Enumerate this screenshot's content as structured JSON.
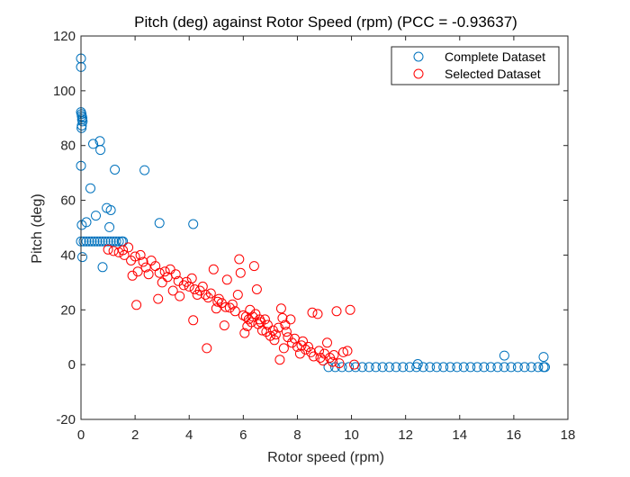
{
  "chart_data": {
    "type": "scatter",
    "title": "Pitch (deg) against Rotor Speed (rpm) (PCC = -0.93637)",
    "xlabel": "Rotor speed (rpm)",
    "ylabel": "Pitch (deg)",
    "xlim": [
      0,
      18
    ],
    "ylim": [
      -20,
      120
    ],
    "xticks": [
      "0",
      "2",
      "4",
      "6",
      "8",
      "10",
      "12",
      "14",
      "16",
      "18"
    ],
    "yticks": [
      "-20",
      "0",
      "20",
      "40",
      "60",
      "80",
      "100",
      "120"
    ],
    "grid": false,
    "legend_position": "top-right",
    "series": [
      {
        "name": "Complete Dataset",
        "color": "#0072BD",
        "marker": "open-circle",
        "points": [
          [
            0.0,
            111.8
          ],
          [
            0.0,
            108.7
          ],
          [
            0.0,
            92.2
          ],
          [
            0.02,
            91.5
          ],
          [
            0.03,
            90.8
          ],
          [
            0.05,
            90.2
          ],
          [
            0.04,
            89.5
          ],
          [
            0.06,
            88.8
          ],
          [
            0.03,
            87.3
          ],
          [
            0.02,
            86.4
          ],
          [
            0.0,
            72.6
          ],
          [
            0.03,
            51.0
          ],
          [
            0.05,
            39.3
          ],
          [
            0.2,
            52.0
          ],
          [
            0.35,
            64.4
          ],
          [
            0.45,
            80.6
          ],
          [
            0.55,
            54.4
          ],
          [
            0.7,
            81.6
          ],
          [
            0.72,
            78.4
          ],
          [
            0.8,
            35.6
          ],
          [
            0.95,
            57.2
          ],
          [
            1.05,
            50.2
          ],
          [
            1.1,
            56.4
          ],
          [
            1.25,
            71.2
          ],
          [
            2.35,
            71.0
          ],
          [
            2.9,
            51.7
          ],
          [
            4.15,
            51.3
          ],
          [
            12.45,
            0.2
          ],
          [
            15.65,
            3.3
          ],
          [
            17.1,
            2.8
          ],
          [
            0.0,
            45.0
          ],
          [
            0.1,
            45.0
          ],
          [
            0.2,
            45.0
          ],
          [
            0.3,
            45.0
          ],
          [
            0.4,
            45.0
          ],
          [
            0.5,
            45.0
          ],
          [
            0.6,
            45.0
          ],
          [
            0.7,
            45.0
          ],
          [
            0.8,
            45.0
          ],
          [
            0.9,
            45.0
          ],
          [
            1.0,
            45.0
          ],
          [
            1.1,
            45.0
          ],
          [
            1.2,
            45.0
          ],
          [
            1.3,
            45.0
          ],
          [
            1.4,
            45.0
          ],
          [
            1.5,
            45.0
          ],
          [
            1.55,
            45.0
          ],
          [
            9.15,
            -0.9
          ],
          [
            9.4,
            -0.9
          ],
          [
            9.65,
            -0.9
          ],
          [
            9.9,
            -0.9
          ],
          [
            10.15,
            -0.9
          ],
          [
            10.4,
            -0.9
          ],
          [
            10.65,
            -0.9
          ],
          [
            10.9,
            -0.9
          ],
          [
            11.15,
            -0.9
          ],
          [
            11.4,
            -0.9
          ],
          [
            11.65,
            -0.9
          ],
          [
            11.9,
            -0.9
          ],
          [
            12.15,
            -0.9
          ],
          [
            12.4,
            -0.9
          ],
          [
            12.65,
            -0.9
          ],
          [
            12.9,
            -0.9
          ],
          [
            13.15,
            -0.9
          ],
          [
            13.4,
            -0.9
          ],
          [
            13.65,
            -0.9
          ],
          [
            13.9,
            -0.9
          ],
          [
            14.15,
            -0.9
          ],
          [
            14.4,
            -0.9
          ],
          [
            14.65,
            -0.9
          ],
          [
            14.9,
            -0.9
          ],
          [
            15.15,
            -0.9
          ],
          [
            15.4,
            -0.9
          ],
          [
            15.65,
            -0.9
          ],
          [
            15.9,
            -0.9
          ],
          [
            16.15,
            -0.9
          ],
          [
            16.4,
            -0.9
          ],
          [
            16.65,
            -0.9
          ],
          [
            16.9,
            -0.9
          ],
          [
            17.1,
            -0.9
          ],
          [
            17.15,
            -0.9
          ]
        ]
      },
      {
        "name": "Selected Dataset",
        "color": "#FF0000",
        "marker": "open-circle",
        "points": [
          [
            1.0,
            42.0
          ],
          [
            1.2,
            41.5
          ],
          [
            1.4,
            41.0
          ],
          [
            1.55,
            41.8
          ],
          [
            1.6,
            40.0
          ],
          [
            1.75,
            42.8
          ],
          [
            1.85,
            38.0
          ],
          [
            2.0,
            39.5
          ],
          [
            2.1,
            34.0
          ],
          [
            2.2,
            40.0
          ],
          [
            1.9,
            32.5
          ],
          [
            2.05,
            21.8
          ],
          [
            2.3,
            37.5
          ],
          [
            2.4,
            35.5
          ],
          [
            2.5,
            33.0
          ],
          [
            2.6,
            38.0
          ],
          [
            2.75,
            36.0
          ],
          [
            2.85,
            24.0
          ],
          [
            2.9,
            33.5
          ],
          [
            3.0,
            30.0
          ],
          [
            3.1,
            34.0
          ],
          [
            3.2,
            32.0
          ],
          [
            3.3,
            34.8
          ],
          [
            3.4,
            27.0
          ],
          [
            3.5,
            33.0
          ],
          [
            3.6,
            30.5
          ],
          [
            3.65,
            25.0
          ],
          [
            3.8,
            29.0
          ],
          [
            3.9,
            30.2
          ],
          [
            4.0,
            28.5
          ],
          [
            4.1,
            31.5
          ],
          [
            4.15,
            16.2
          ],
          [
            4.2,
            27.5
          ],
          [
            4.3,
            25.5
          ],
          [
            4.4,
            27.0
          ],
          [
            4.5,
            28.5
          ],
          [
            4.6,
            25.5
          ],
          [
            4.65,
            6.0
          ],
          [
            4.7,
            24.5
          ],
          [
            4.8,
            26.0
          ],
          [
            4.9,
            34.8
          ],
          [
            5.0,
            20.5
          ],
          [
            5.05,
            23.0
          ],
          [
            5.1,
            24.0
          ],
          [
            5.2,
            22.5
          ],
          [
            5.3,
            14.3
          ],
          [
            5.35,
            21.0
          ],
          [
            5.4,
            31.0
          ],
          [
            5.5,
            20.8
          ],
          [
            5.6,
            22.0
          ],
          [
            5.7,
            19.5
          ],
          [
            5.8,
            25.5
          ],
          [
            5.85,
            38.5
          ],
          [
            5.9,
            33.5
          ],
          [
            6.0,
            18.0
          ],
          [
            6.05,
            11.5
          ],
          [
            6.1,
            17.5
          ],
          [
            6.15,
            14.0
          ],
          [
            6.2,
            16.5
          ],
          [
            6.25,
            20.0
          ],
          [
            6.3,
            15.5
          ],
          [
            6.35,
            17.5
          ],
          [
            6.4,
            36.0
          ],
          [
            6.45,
            18.5
          ],
          [
            6.5,
            27.5
          ],
          [
            6.55,
            14.8
          ],
          [
            6.6,
            16.5
          ],
          [
            6.65,
            15.5
          ],
          [
            6.7,
            12.5
          ],
          [
            6.8,
            16.5
          ],
          [
            6.85,
            12.0
          ],
          [
            6.9,
            14.5
          ],
          [
            7.0,
            10.5
          ],
          [
            7.1,
            12.5
          ],
          [
            7.15,
            9.0
          ],
          [
            7.2,
            11.0
          ],
          [
            7.3,
            13.5
          ],
          [
            7.35,
            1.8
          ],
          [
            7.4,
            20.5
          ],
          [
            7.45,
            17.0
          ],
          [
            7.5,
            6.0
          ],
          [
            7.55,
            14.5
          ],
          [
            7.6,
            12.0
          ],
          [
            7.65,
            10.0
          ],
          [
            7.75,
            16.5
          ],
          [
            7.8,
            8.0
          ],
          [
            7.9,
            9.5
          ],
          [
            8.0,
            6.5
          ],
          [
            8.1,
            4.0
          ],
          [
            8.15,
            7.0
          ],
          [
            8.2,
            8.5
          ],
          [
            8.3,
            5.5
          ],
          [
            8.4,
            6.5
          ],
          [
            8.5,
            4.5
          ],
          [
            8.55,
            19.0
          ],
          [
            8.6,
            3.0
          ],
          [
            8.75,
            18.5
          ],
          [
            8.8,
            5.0
          ],
          [
            8.85,
            2.5
          ],
          [
            8.95,
            1.5
          ],
          [
            9.0,
            4.0
          ],
          [
            9.1,
            8.0
          ],
          [
            9.2,
            2.5
          ],
          [
            9.3,
            1.0
          ],
          [
            9.35,
            3.5
          ],
          [
            9.45,
            19.5
          ],
          [
            9.55,
            0.5
          ],
          [
            9.7,
            4.5
          ],
          [
            9.85,
            5.0
          ],
          [
            9.95,
            20.0
          ],
          [
            10.1,
            0.0
          ]
        ]
      }
    ]
  }
}
